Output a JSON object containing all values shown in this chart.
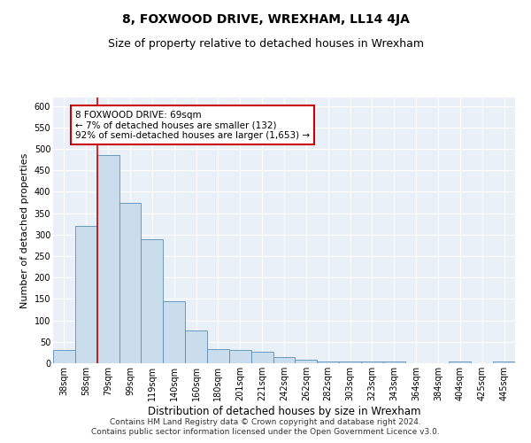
{
  "title": "8, FOXWOOD DRIVE, WREXHAM, LL14 4JA",
  "subtitle": "Size of property relative to detached houses in Wrexham",
  "xlabel": "Distribution of detached houses by size in Wrexham",
  "ylabel": "Number of detached properties",
  "categories": [
    "38sqm",
    "58sqm",
    "79sqm",
    "99sqm",
    "119sqm",
    "140sqm",
    "160sqm",
    "180sqm",
    "201sqm",
    "221sqm",
    "242sqm",
    "262sqm",
    "282sqm",
    "303sqm",
    "323sqm",
    "343sqm",
    "364sqm",
    "384sqm",
    "404sqm",
    "425sqm",
    "445sqm"
  ],
  "values": [
    30,
    320,
    485,
    375,
    290,
    145,
    77,
    33,
    30,
    27,
    15,
    8,
    5,
    4,
    4,
    4,
    0,
    0,
    4,
    0,
    5
  ],
  "bar_color": "#c9dded",
  "bar_edge_color": "#5b8db8",
  "property_line_x": 1.5,
  "annotation_line1": "8 FOXWOOD DRIVE: 69sqm",
  "annotation_line2": "← 7% of detached houses are smaller (132)",
  "annotation_line3": "92% of semi-detached houses are larger (1,653) →",
  "annotation_box_color": "#ffffff",
  "annotation_box_edge_color": "#cc0000",
  "vline_color": "#cc0000",
  "ylim": [
    0,
    620
  ],
  "yticks": [
    0,
    50,
    100,
    150,
    200,
    250,
    300,
    350,
    400,
    450,
    500,
    550,
    600
  ],
  "footnote1": "Contains HM Land Registry data © Crown copyright and database right 2024.",
  "footnote2": "Contains public sector information licensed under the Open Government Licence v3.0.",
  "plot_bg_color": "#eaf0f7",
  "title_fontsize": 10,
  "subtitle_fontsize": 9,
  "xlabel_fontsize": 8.5,
  "ylabel_fontsize": 8,
  "tick_fontsize": 7,
  "annotation_fontsize": 7.5,
  "footnote_fontsize": 6.5
}
